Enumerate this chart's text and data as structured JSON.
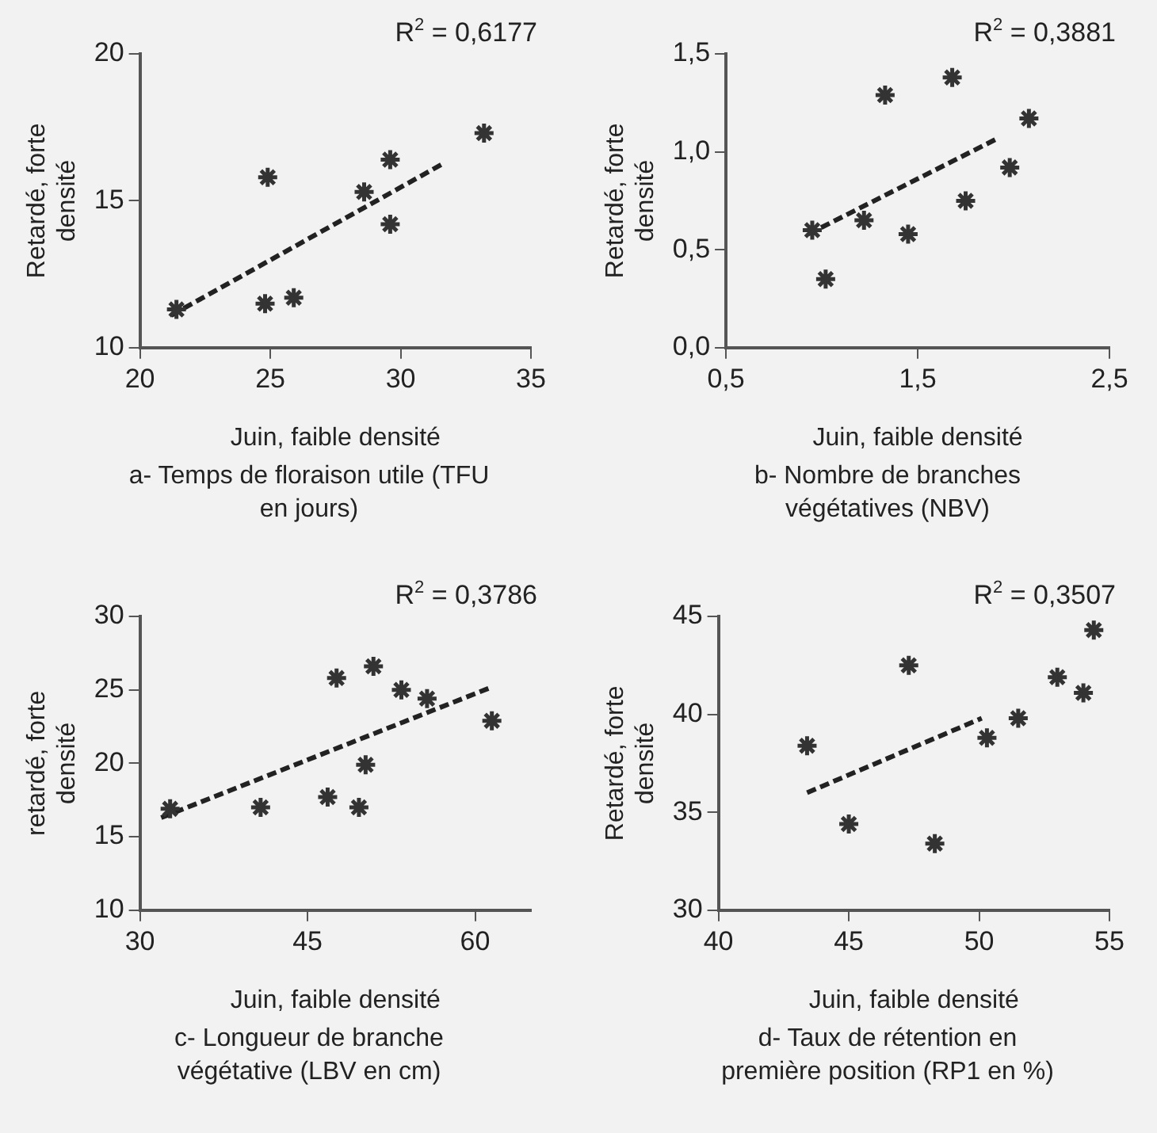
{
  "chart_data": [
    {
      "type": "scatter",
      "title": "a- Temps de floraison utile (TFU en jours)",
      "xlabel": "Juin, faible densité",
      "ylabel": "Retardé, forte densité",
      "annotations": [
        "R$^{2}$ = 0,6177"
      ],
      "marker": "cross",
      "grid": false,
      "legend": false,
      "xlim": [
        20,
        35
      ],
      "xticks": [
        20,
        25,
        30,
        35
      ],
      "ylim": [
        10,
        20
      ],
      "yticks": [
        10,
        15,
        20
      ],
      "series": [
        {
          "color": "#333333",
          "x": [
            21.4,
            24.9,
            24.8,
            25.9,
            28.6,
            29.6,
            29.6,
            33.2
          ],
          "values": [
            11.3,
            15.8,
            11.5,
            11.7,
            15.3,
            16.4,
            14.2,
            17.3
          ]
        },
        {
          "type": "line",
          "color": "#222222",
          "line_style": "dashed",
          "marker": "none",
          "x": [
            21.2,
            31.7
          ],
          "values": [
            11.1,
            16.3
          ]
        }
      ]
    },
    {
      "type": "scatter",
      "title": "b- Nombre de branches végétatives (NBV)",
      "xlabel": "Juin, faible densité",
      "ylabel": "Retardé, forte densité",
      "annotations": [
        "R$^{2}$ = 0,3881"
      ],
      "marker": "cross",
      "grid": false,
      "legend": false,
      "xlim": [
        0.5,
        2.5
      ],
      "xticks": [
        {
          "value": 0.5,
          "label": "0,5"
        },
        {
          "value": 1.5,
          "label": "1,5"
        },
        {
          "value": 2.5,
          "label": "2,5"
        }
      ],
      "ylim": [
        0,
        1.5
      ],
      "yticks": [
        {
          "value": 0,
          "label": "0,0"
        },
        {
          "value": 0.5,
          "label": "0,5"
        },
        {
          "value": 1,
          "label": "1,0"
        },
        {
          "value": 1.5,
          "label": "1,5"
        }
      ],
      "series": [
        {
          "color": "#333333",
          "x": [
            0.95,
            1.02,
            1.22,
            1.33,
            1.45,
            1.68,
            1.75,
            1.98,
            2.08
          ],
          "values": [
            0.6,
            0.35,
            0.65,
            1.29,
            0.58,
            1.38,
            0.75,
            0.92,
            1.17
          ]
        },
        {
          "type": "line",
          "color": "#222222",
          "line_style": "dashed",
          "marker": "none",
          "x": [
            0.93,
            1.92
          ],
          "values": [
            0.58,
            1.07
          ]
        }
      ]
    },
    {
      "type": "scatter",
      "title": "c- Longueur de branche végétative (LBV en cm)",
      "xlabel": "Juin, faible densité",
      "ylabel": "retardé, forte densité",
      "annotations": [
        "R$^{2}$ = 0,3786"
      ],
      "marker": "cross",
      "grid": false,
      "legend": false,
      "xlim": [
        30,
        65
      ],
      "xticks": [
        30,
        45,
        60
      ],
      "ylim": [
        10,
        30
      ],
      "yticks": [
        10,
        15,
        20,
        25,
        30
      ],
      "series": [
        {
          "color": "#333333",
          "x": [
            32.7,
            40.8,
            47.6,
            46.8,
            49.6,
            50.9,
            50.2,
            53.4,
            55.7,
            61.5
          ],
          "values": [
            16.9,
            17.0,
            25.8,
            17.7,
            17.0,
            26.6,
            19.9,
            25.0,
            24.4,
            22.9
          ]
        },
        {
          "type": "line",
          "color": "#222222",
          "line_style": "dashed",
          "marker": "none",
          "x": [
            31.9,
            61.2
          ],
          "values": [
            16.3,
            25.1
          ]
        }
      ]
    },
    {
      "type": "scatter",
      "title": "d- Taux de rétention en première position (RP1 en %)",
      "xlabel": "Juin, faible densité",
      "ylabel": "Retardé, forte densité",
      "annotations": [
        "R$^{2}$ = 0,3507"
      ],
      "marker": "cross",
      "grid": false,
      "legend": false,
      "xlim": [
        40,
        55
      ],
      "xticks": [
        40,
        45,
        50,
        55
      ],
      "ylim": [
        30,
        45
      ],
      "yticks": [
        30,
        35,
        40,
        45
      ],
      "series": [
        {
          "color": "#333333",
          "x": [
            43.4,
            45.0,
            47.3,
            48.3,
            50.3,
            51.5,
            53.0,
            54.0,
            54.4
          ],
          "values": [
            38.4,
            34.4,
            42.5,
            33.4,
            38.8,
            39.8,
            41.9,
            41.1,
            44.3
          ]
        },
        {
          "type": "line",
          "color": "#222222",
          "line_style": "dashed",
          "marker": "none",
          "x": [
            43.4,
            50.1
          ],
          "values": [
            36.0,
            39.8
          ]
        }
      ]
    }
  ]
}
